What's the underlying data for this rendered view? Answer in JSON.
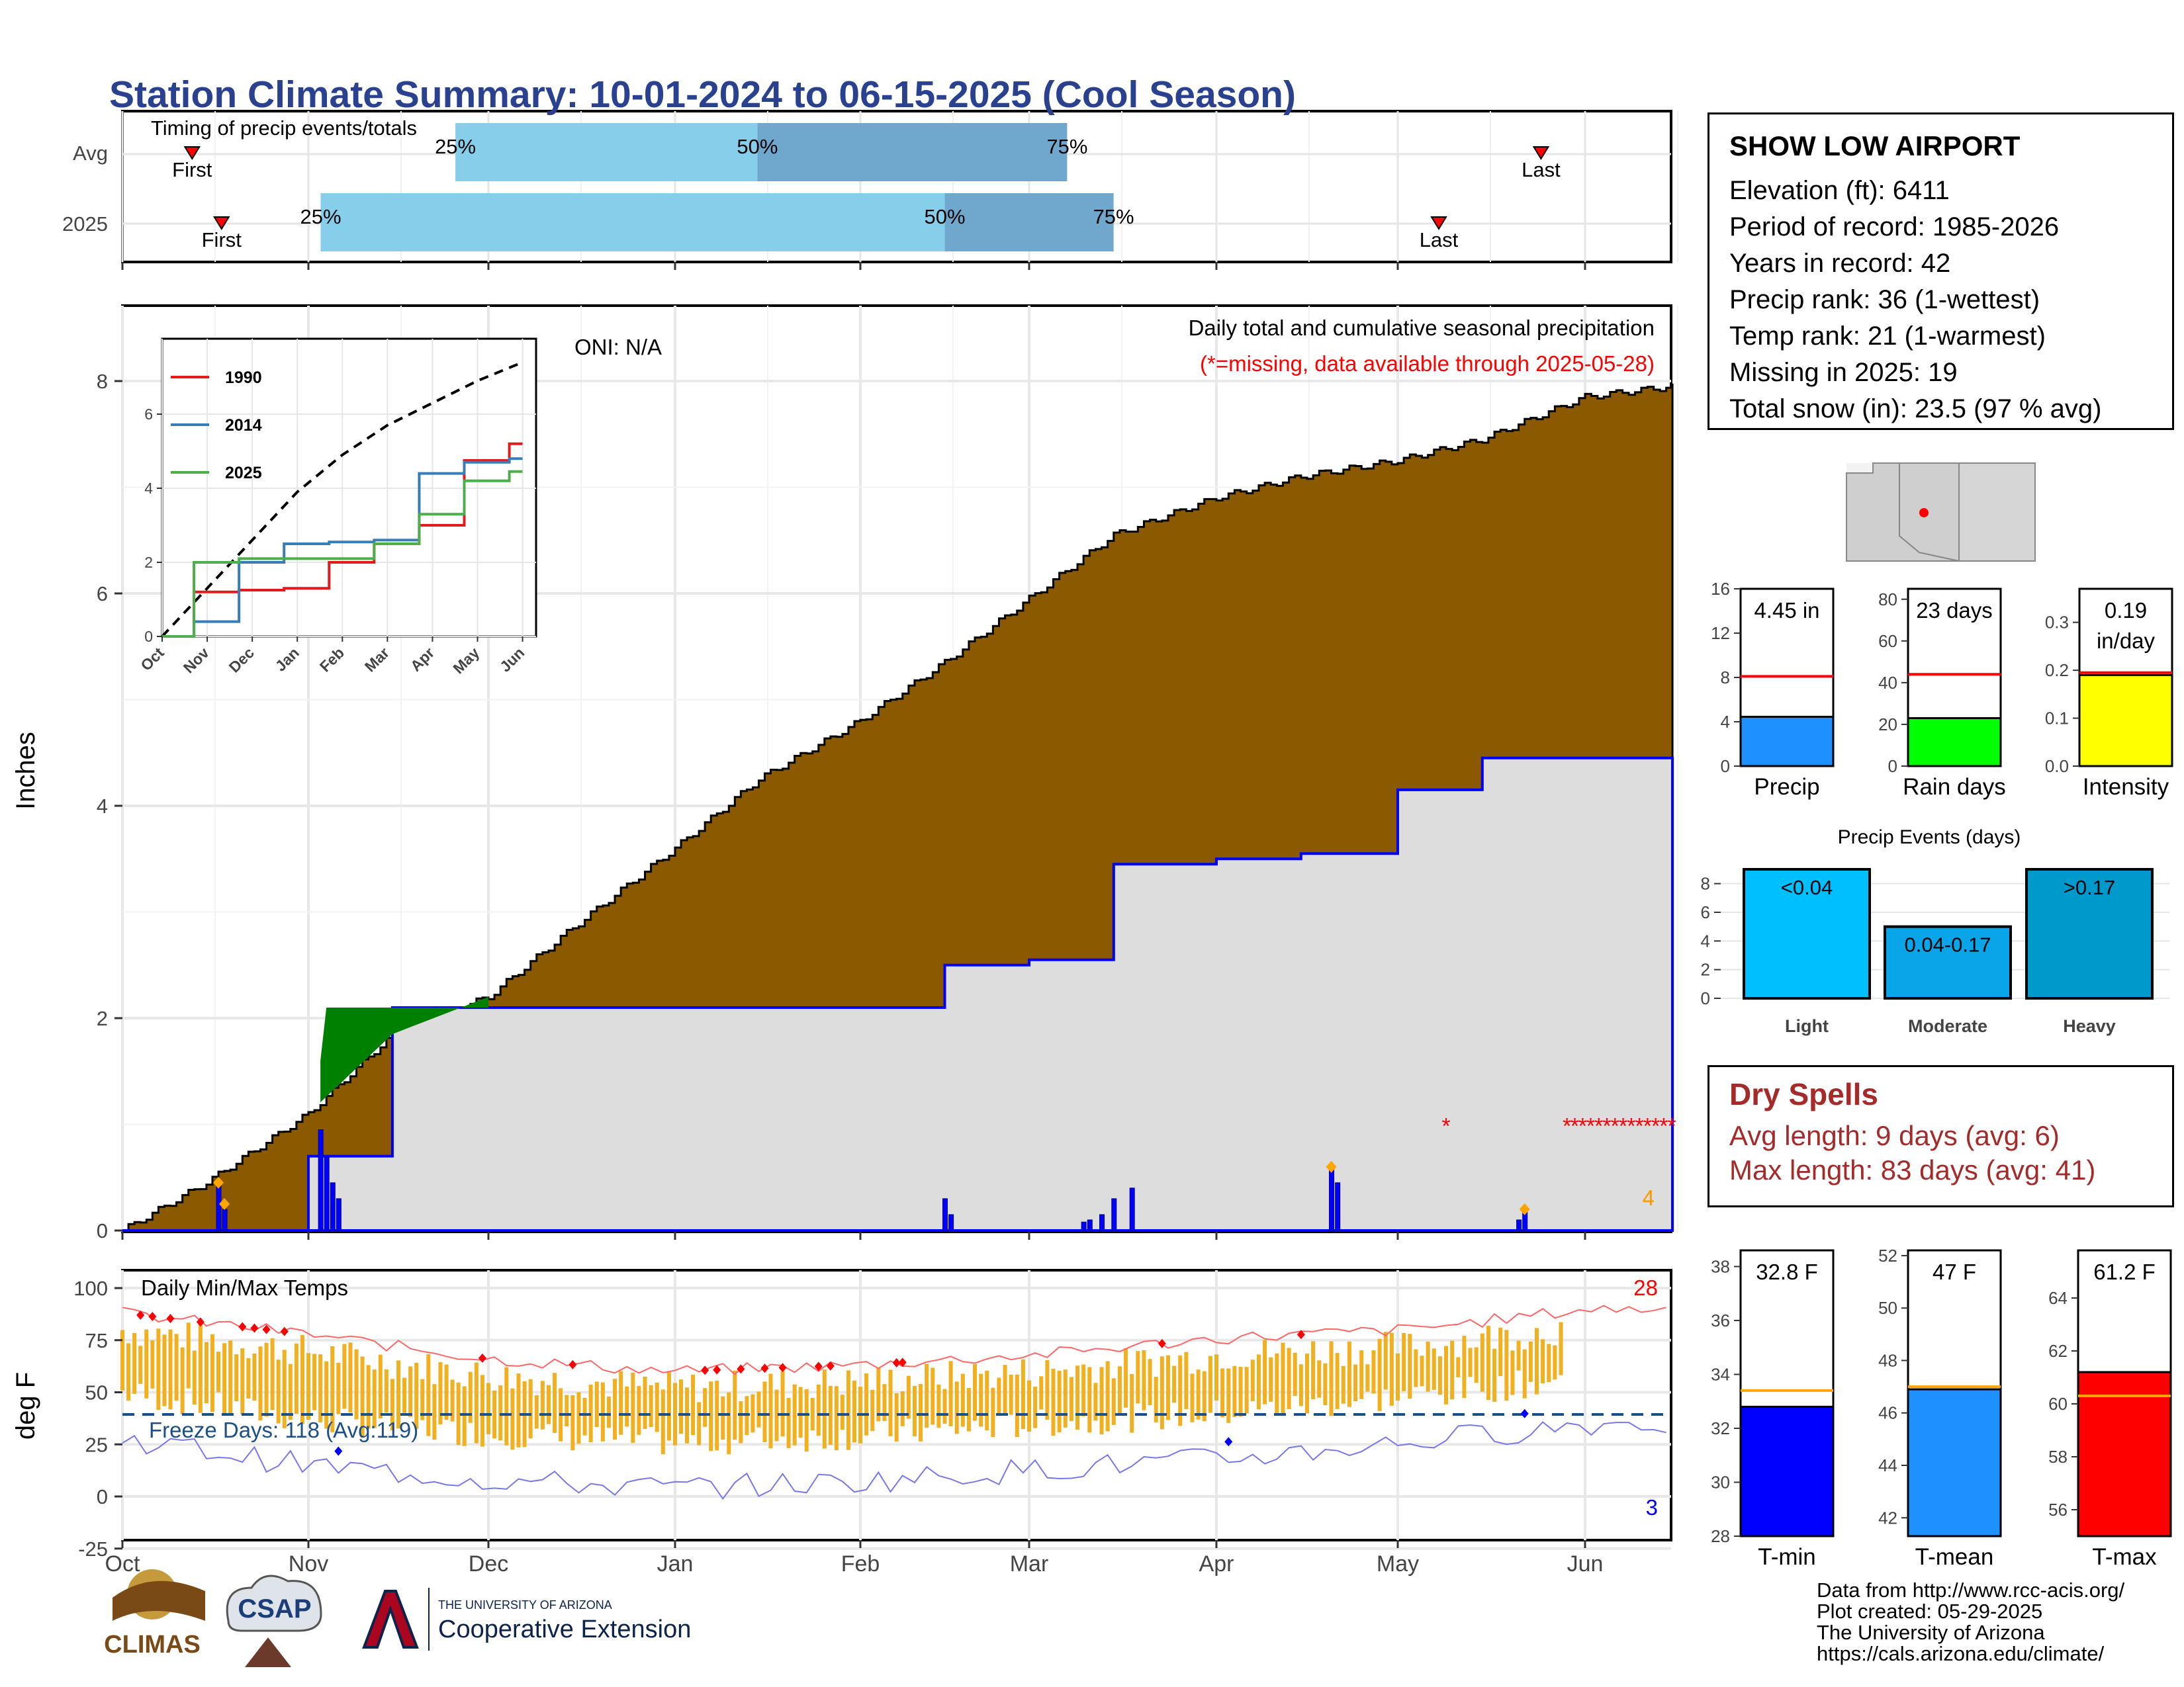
{
  "title": "Station Climate Summary: 10-01-2024 to 06-15-2025 (Cool Season)",
  "colors": {
    "title": "#2a4190",
    "cum_fill": "#8B5A00",
    "obs_fill": "#dddddd",
    "obs_line": "#0000ff",
    "excess_fill": "#008000",
    "bar_light": "#87CEEB",
    "bar_dark": "#6fa8cc",
    "temp_bar": "#f0b020",
    "missing": "#ff0000"
  },
  "months": [
    "Oct",
    "Nov",
    "Dec",
    "Jan",
    "Feb",
    "Mar",
    "Apr",
    "May",
    "Jun"
  ],
  "timing": {
    "label": "Timing of precip events/totals",
    "rows": [
      {
        "name": "Avg",
        "first_label": "First",
        "last_label": "Last",
        "p25_label": "25%",
        "p50_label": "50%",
        "p75_label": "75%",
        "first": 0.045,
        "p25": 0.215,
        "p50": 0.41,
        "p75": 0.61,
        "last": 0.916
      },
      {
        "name": "2025",
        "first_label": "First",
        "last_label": "Last",
        "p25_label": "25%",
        "p50_label": "50%",
        "p75_label": "75%",
        "first": 0.064,
        "p25": 0.128,
        "p50": 0.531,
        "p75": 0.64,
        "last": 0.85
      }
    ]
  },
  "precip_panel": {
    "ylabel": "Inches",
    "oni": "ONI: N/A",
    "subtitle": "Daily total and cumulative seasonal precipitation",
    "missing_note": "(*=missing, data available through 2025-05-28)",
    "corner_count": "4",
    "y_ticks": [
      "0",
      "2",
      "4",
      "6",
      "8"
    ]
  },
  "inset": {
    "series": [
      {
        "name": "1990",
        "color": "#e41a1c"
      },
      {
        "name": "2014",
        "color": "#377eb8"
      },
      {
        "name": "2025",
        "color": "#4daf4a"
      }
    ],
    "y_ticks": [
      "0",
      "2",
      "4",
      "6"
    ],
    "x_ticks": [
      "Oct",
      "Nov",
      "Dec",
      "Jan",
      "Feb",
      "Mar",
      "Apr",
      "May",
      "Jun"
    ]
  },
  "temp_panel": {
    "ylabel": "deg F",
    "label": "Daily Min/Max Temps",
    "freeze": "Freeze Days: 118 (Avg:119)",
    "hot_count": "28",
    "cold_count": "3",
    "y_ticks": [
      "100",
      "75",
      "50",
      "25",
      "0",
      "-25"
    ]
  },
  "station": {
    "name": "SHOW LOW AIRPORT",
    "rows": [
      "Elevation (ft): 6411",
      "Period of record: 1985-2026",
      "Years in record: 42",
      "Precip rank: 36 (1-wettest)",
      "Temp rank: 21 (1-warmest)",
      "Missing in 2025: 19",
      "Total snow (in): 23.5 (97 % avg)"
    ]
  },
  "mini_precip": [
    {
      "label": "Precip",
      "value_label": "4.45 in",
      "value": 4.45,
      "avg": 8.1,
      "ymax": 16,
      "ticks": [
        "0",
        "4",
        "8",
        "12",
        "16"
      ],
      "color": "#1e90ff"
    },
    {
      "label": "Rain days",
      "value_label": "23 days",
      "value": 23,
      "avg": 44,
      "ymax": 85,
      "ticks": [
        "0",
        "20",
        "40",
        "60",
        "80"
      ],
      "color": "#00ff00"
    },
    {
      "label": "Intensity",
      "value_label": "0.19",
      "value_label2": "in/day",
      "value": 0.19,
      "avg": 0.195,
      "ymax": 0.37,
      "ticks": [
        "0.0",
        "0.1",
        "0.2",
        "0.3"
      ],
      "color": "#ffff00"
    }
  ],
  "events": {
    "title": "Precip Events (days)",
    "categories": [
      "Light",
      "Moderate",
      "Heavy"
    ],
    "bar_labels": [
      "<0.04",
      "0.04-0.17",
      ">0.17"
    ],
    "values": [
      9,
      5,
      9
    ],
    "colors": [
      "#00bfff",
      "#0aa5e8",
      "#0099cc"
    ],
    "ticks": [
      "0",
      "2",
      "4",
      "6",
      "8"
    ]
  },
  "dry": {
    "title": "Dry Spells",
    "avg": "Avg length: 9 days (avg: 6)",
    "max": "Max length: 83 days (avg: 41)"
  },
  "mini_temp": [
    {
      "label": "T-min",
      "value_label": "32.8 F",
      "value": 32.8,
      "avg": 33.4,
      "ymin": 28,
      "ymax": 38.6,
      "ticks": [
        "28",
        "30",
        "32",
        "34",
        "36",
        "38"
      ],
      "color": "#0000ff"
    },
    {
      "label": "T-mean",
      "value_label": "47 F",
      "value": 46.9,
      "avg": 47.0,
      "ymin": 41.3,
      "ymax": 52.2,
      "ticks": [
        "42",
        "44",
        "46",
        "48",
        "50",
        "52"
      ],
      "color": "#1e90ff"
    },
    {
      "label": "T-max",
      "value_label": "61.2 F",
      "value": 61.2,
      "avg": 60.3,
      "ymin": 55,
      "ymax": 65.8,
      "ticks": [
        "56",
        "58",
        "60",
        "62",
        "64"
      ],
      "color": "#ff0000"
    }
  ],
  "footer": [
    "Data from http://www.rcc-acis.org/",
    "Plot created: 05-29-2025",
    "The University of Arizona",
    "https://cals.arizona.edu/climate/"
  ],
  "logos": {
    "climas": "CLIMAS",
    "csap": "CSAP",
    "ua_small": "THE UNIVERSITY OF ARIZONA",
    "ua_big": "Cooperative Extension"
  },
  "chart_data": [
    {
      "type": "area",
      "title": "Daily total and cumulative seasonal precipitation",
      "ylabel": "Inches",
      "ylim": [
        0,
        8.7
      ],
      "x": [
        "2024-10-01",
        "2024-10-15",
        "2024-11-01",
        "2024-11-15",
        "2024-12-01",
        "2024-12-15",
        "2025-01-01",
        "2025-01-15",
        "2025-02-01",
        "2025-02-15",
        "2025-03-01",
        "2025-03-15",
        "2025-04-01",
        "2025-04-15",
        "2025-05-01",
        "2025-05-15",
        "2025-06-01",
        "2025-06-15"
      ],
      "series": [
        {
          "name": "Average cumulative",
          "values": [
            0,
            0.45,
            1.1,
            1.85,
            2.2,
            2.85,
            3.6,
            4.25,
            4.8,
            5.35,
            5.95,
            6.55,
            6.9,
            7.1,
            7.25,
            7.45,
            7.85,
            7.95
          ]
        },
        {
          "name": "2025 cumulative",
          "values": [
            0,
            0,
            0.7,
            2.1,
            2.1,
            2.1,
            2.1,
            2.1,
            2.1,
            2.5,
            2.55,
            3.45,
            3.5,
            3.55,
            4.15,
            4.45,
            4.45,
            4.45
          ]
        }
      ]
    },
    {
      "type": "line",
      "title": "",
      "ylim": [
        0,
        6.5
      ],
      "x": [
        "Oct",
        "Nov",
        "Dec",
        "Jan",
        "Feb",
        "Mar",
        "Apr",
        "May",
        "Jun"
      ],
      "series": [
        {
          "name": "1990",
          "values": [
            0,
            1.2,
            1.25,
            1.3,
            2.0,
            2.5,
            3.0,
            4.75,
            5.2
          ]
        },
        {
          "name": "2014",
          "values": [
            0,
            0.4,
            2.0,
            2.5,
            2.55,
            2.6,
            4.4,
            4.7,
            4.8
          ]
        },
        {
          "name": "2025",
          "values": [
            0,
            2.0,
            2.1,
            2.1,
            2.1,
            2.5,
            3.3,
            4.2,
            4.45
          ]
        }
      ]
    },
    {
      "type": "bar",
      "title": "Daily Min/Max Temps",
      "ylabel": "deg F",
      "ylim": [
        -28,
        102
      ],
      "x": [
        "Oct",
        "Nov",
        "Dec",
        "Jan",
        "Feb",
        "Mar",
        "Apr",
        "May",
        "Jun"
      ],
      "series": [
        {
          "name": "Tmax",
          "values": [
            80,
            70,
            58,
            52,
            55,
            60,
            68,
            72,
            82
          ]
        },
        {
          "name": "Tmin",
          "values": [
            48,
            35,
            28,
            24,
            27,
            33,
            38,
            46,
            55
          ]
        }
      ]
    },
    {
      "type": "bar",
      "title": "Precip Events (days)",
      "categories": [
        "Light",
        "Moderate",
        "Heavy"
      ],
      "values": [
        9,
        5,
        9
      ],
      "ylim": [
        0,
        9
      ]
    }
  ]
}
